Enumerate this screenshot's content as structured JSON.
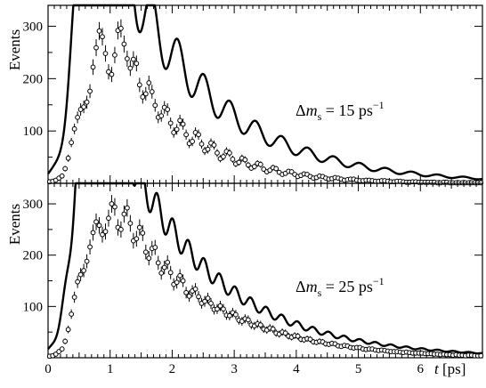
{
  "figure": {
    "colors": {
      "curve": "#000000",
      "points": "#000000",
      "background": "#ffffff"
    }
  },
  "chart_data": [
    {
      "type": "scatter",
      "panel": "top",
      "title": "",
      "ylabel": "Events",
      "xlabel": "",
      "annotation": {
        "symbol": "Δ",
        "var": "m",
        "sub": "s",
        "value": " = 15 ps",
        "sup": "−1"
      },
      "xlim": [
        0,
        7
      ],
      "ylim": [
        0,
        340
      ],
      "yticks": [
        100,
        200,
        300
      ],
      "grid": false,
      "legend": "none",
      "model": {
        "dm": 15,
        "tau": 1.5,
        "norm": 940,
        "amplitude": 0.18,
        "turn_on_mid": 0.45,
        "turn_on_width": 0.11
      },
      "series": [
        {
          "kind": "fit-curve"
        },
        {
          "kind": "data-points",
          "x_start": 0.025,
          "x_step": 0.05,
          "y": [
            3,
            4,
            6,
            10,
            14,
            28,
            48,
            78,
            104,
            126,
            141,
            146,
            155,
            176,
            222,
            259,
            291,
            280,
            248,
            213,
            208,
            245,
            292,
            296,
            266,
            238,
            220,
            237,
            229,
            188,
            165,
            171,
            192,
            175,
            149,
            126,
            129,
            145,
            141,
            115,
            97,
            103,
            120,
            113,
            93,
            76,
            80,
            97,
            93,
            75,
            62,
            65,
            77,
            73,
            58,
            47,
            51,
            61,
            58,
            46,
            37,
            40,
            48,
            45,
            35,
            29,
            32,
            38,
            36,
            27,
            22,
            25,
            30,
            28,
            21,
            17,
            19,
            23,
            22,
            17,
            13,
            15,
            18,
            17,
            13,
            10,
            11,
            14,
            13,
            10,
            8,
            9,
            11,
            10,
            8,
            6,
            7,
            8,
            8,
            6,
            5,
            5,
            6,
            6,
            5,
            4,
            4,
            5,
            5,
            4,
            3,
            3,
            4,
            4,
            3,
            2,
            2,
            3,
            3,
            2,
            2,
            2,
            2,
            2,
            2,
            1,
            1,
            2,
            2,
            1,
            1,
            1,
            1,
            1,
            1,
            1,
            1,
            1,
            1,
            1
          ]
        }
      ]
    },
    {
      "type": "scatter",
      "panel": "bottom",
      "title": "",
      "ylabel": "Events",
      "xlabel": "t [ps]",
      "annotation": {
        "symbol": "Δ",
        "var": "m",
        "sub": "s",
        "value": " = 25 ps",
        "sup": "−1"
      },
      "xlim": [
        0,
        7
      ],
      "ylim": [
        0,
        340
      ],
      "xticks": [
        0,
        1,
        2,
        3,
        4,
        5,
        6
      ],
      "yticks": [
        100,
        200,
        300
      ],
      "grid": false,
      "legend": "none",
      "model": {
        "dm": 25,
        "tau": 1.5,
        "norm": 940,
        "amplitude": 0.1,
        "turn_on_mid": 0.45,
        "turn_on_width": 0.11
      },
      "series": [
        {
          "kind": "fit-curve"
        },
        {
          "kind": "data-points",
          "x_start": 0.025,
          "x_step": 0.05,
          "y": [
            3,
            4,
            7,
            12,
            17,
            32,
            55,
            85,
            118,
            148,
            162,
            170,
            188,
            216,
            244,
            265,
            258,
            240,
            246,
            272,
            300,
            294,
            254,
            250,
            280,
            292,
            262,
            228,
            232,
            254,
            243,
            206,
            194,
            213,
            215,
            185,
            165,
            176,
            186,
            166,
            143,
            147,
            160,
            150,
            127,
            120,
            130,
            134,
            119,
            106,
            110,
            116,
            106,
            94,
            95,
            101,
            95,
            83,
            82,
            88,
            84,
            73,
            71,
            76,
            74,
            64,
            62,
            66,
            64,
            56,
            54,
            58,
            56,
            48,
            46,
            50,
            48,
            42,
            40,
            43,
            42,
            36,
            35,
            37,
            36,
            31,
            30,
            32,
            31,
            27,
            26,
            28,
            27,
            23,
            22,
            24,
            23,
            20,
            19,
            20,
            20,
            17,
            16,
            17,
            17,
            15,
            14,
            15,
            14,
            13,
            12,
            12,
            12,
            11,
            10,
            11,
            10,
            9,
            9,
            9,
            9,
            8,
            8,
            8,
            7,
            7,
            6,
            7,
            6,
            6,
            5,
            6,
            5,
            5,
            4,
            5,
            5,
            4,
            4,
            4
          ]
        }
      ]
    }
  ]
}
